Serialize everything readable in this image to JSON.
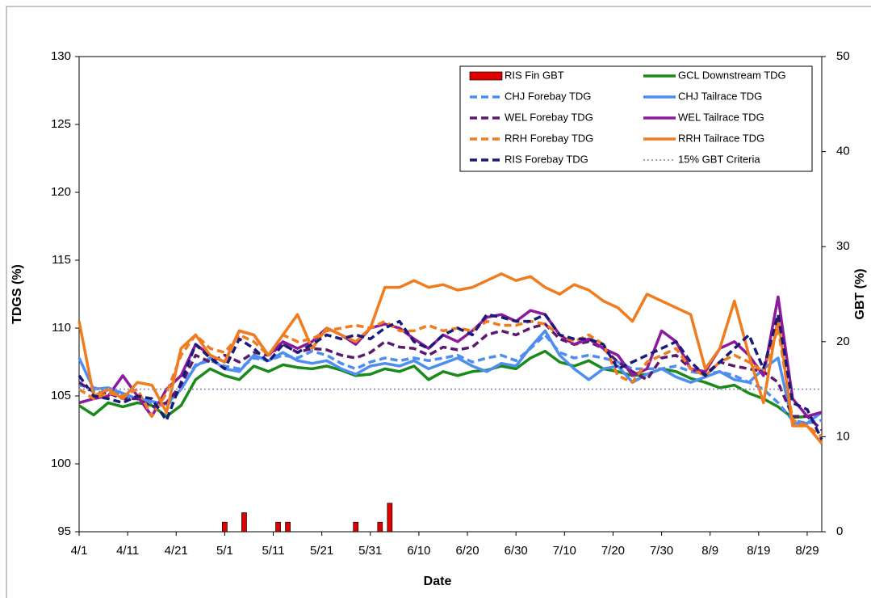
{
  "chart_data": {
    "type": "line",
    "x": [
      "4/1",
      "4/4",
      "4/7",
      "4/10",
      "4/13",
      "4/16",
      "4/19",
      "4/22",
      "4/25",
      "4/28",
      "5/1",
      "5/4",
      "5/7",
      "5/10",
      "5/13",
      "5/16",
      "5/19",
      "5/22",
      "5/25",
      "5/28",
      "5/31",
      "6/3",
      "6/6",
      "6/9",
      "6/12",
      "6/15",
      "6/18",
      "6/21",
      "6/24",
      "6/27",
      "6/30",
      "7/3",
      "7/6",
      "7/9",
      "7/12",
      "7/15",
      "7/18",
      "7/21",
      "7/24",
      "7/27",
      "7/30",
      "8/2",
      "8/5",
      "8/8",
      "8/11",
      "8/14",
      "8/17",
      "8/20",
      "8/23",
      "8/26",
      "8/29",
      "9/1"
    ],
    "xlim": [
      "4/1",
      "9/1"
    ],
    "xticks": [
      "4/1",
      "4/11",
      "4/21",
      "5/1",
      "5/11",
      "5/21",
      "5/31",
      "6/10",
      "6/20",
      "6/30",
      "7/10",
      "7/20",
      "7/30",
      "8/9",
      "8/19",
      "8/29"
    ],
    "xlabel": "Date",
    "ylabel": "TDGS (%)",
    "y2label": "GBT (%)",
    "ylim": [
      95,
      130
    ],
    "yticks": [
      95,
      100,
      105,
      110,
      115,
      120,
      125,
      130
    ],
    "y2lim": [
      0,
      50
    ],
    "y2ticks": [
      0,
      10,
      20,
      30,
      40,
      50
    ],
    "legend": "top-right",
    "series": [
      {
        "name": "RIS Fin GBT",
        "type": "bar",
        "axis": "y2",
        "color": "#e00000",
        "x": [
          "5/1",
          "5/5",
          "5/12",
          "5/14",
          "5/28",
          "6/2",
          "6/4"
        ],
        "values": [
          1,
          2,
          1,
          1,
          1,
          1,
          3
        ]
      },
      {
        "name": "GCL Downstream TDG",
        "color": "#1a8a1a",
        "style": "solid",
        "values": [
          104.3,
          103.6,
          104.5,
          104.2,
          104.5,
          104.3,
          103.5,
          104.3,
          106.2,
          107.0,
          106.5,
          106.2,
          107.2,
          106.8,
          107.3,
          107.1,
          107.0,
          107.2,
          106.9,
          106.5,
          106.6,
          107.0,
          106.8,
          107.2,
          106.2,
          106.8,
          106.5,
          106.8,
          106.9,
          107.2,
          107.0,
          107.8,
          108.3,
          107.5,
          107.2,
          107.6,
          107.0,
          106.8,
          106.5,
          106.6,
          107.0,
          106.8,
          106.3,
          106.0,
          105.6,
          105.8,
          105.2,
          104.8,
          104.2,
          103.4,
          103.5,
          103.8
        ]
      },
      {
        "name": "CHJ Forebay TDG",
        "color": "#4d8ef0",
        "style": "dashed",
        "values": [
          105.8,
          105.6,
          105.4,
          105.0,
          104.8,
          104.5,
          104.2,
          105.5,
          107.3,
          107.6,
          107.2,
          107.0,
          107.8,
          107.6,
          108.0,
          107.8,
          108.3,
          108.0,
          107.4,
          107.0,
          107.5,
          107.8,
          107.6,
          107.8,
          107.6,
          107.8,
          108.0,
          107.5,
          107.8,
          108.0,
          107.6,
          108.5,
          109.5,
          108.2,
          107.8,
          108.0,
          107.8,
          107.5,
          107.0,
          107.0,
          107.0,
          107.2,
          106.8,
          106.6,
          106.8,
          106.5,
          106.0,
          105.5,
          104.5,
          103.2,
          103.0,
          103.2
        ]
      },
      {
        "name": "CHJ Tailrace TDG",
        "color": "#4d8ef0",
        "style": "solid",
        "values": [
          107.8,
          105.5,
          105.6,
          105.2,
          104.8,
          104.6,
          104.4,
          105.5,
          107.2,
          107.8,
          107.0,
          106.8,
          108.0,
          107.6,
          108.2,
          107.6,
          107.4,
          107.6,
          107.0,
          106.6,
          107.2,
          107.4,
          107.2,
          107.6,
          107.0,
          107.4,
          107.8,
          107.2,
          106.8,
          107.4,
          107.2,
          108.6,
          109.8,
          108.0,
          107.0,
          106.2,
          107.0,
          107.2,
          106.0,
          106.6,
          107.0,
          106.4,
          106.0,
          106.4,
          106.8,
          106.2,
          106.0,
          107.0,
          107.8,
          103.0,
          103.0,
          103.8
        ]
      },
      {
        "name": "WEL Forebay TDG",
        "color": "#5c1a6e",
        "style": "dashed",
        "values": [
          106.0,
          105.3,
          105.2,
          104.8,
          104.8,
          104.2,
          104.5,
          105.8,
          108.0,
          107.5,
          108.0,
          107.5,
          108.2,
          108.0,
          108.8,
          108.2,
          108.5,
          108.4,
          108.0,
          107.8,
          108.2,
          109.0,
          108.6,
          108.5,
          108.0,
          108.6,
          108.4,
          108.6,
          109.5,
          109.8,
          109.5,
          110.0,
          110.3,
          109.2,
          108.8,
          109.0,
          108.5,
          107.5,
          106.8,
          106.2,
          107.8,
          108.0,
          107.0,
          106.6,
          107.5,
          107.2,
          107.0,
          106.8,
          106.0,
          103.5,
          103.5,
          102.5
        ]
      },
      {
        "name": "WEL Tailrace TDG",
        "color": "#8b1a9c",
        "style": "solid",
        "values": [
          104.5,
          104.8,
          105.0,
          106.5,
          105.0,
          103.5,
          105.5,
          106.5,
          108.8,
          108.0,
          107.5,
          109.8,
          109.5,
          108.0,
          109.0,
          108.5,
          109.0,
          110.0,
          109.5,
          108.8,
          110.0,
          110.3,
          110.0,
          109.2,
          108.5,
          109.5,
          109.0,
          109.8,
          110.8,
          111.0,
          110.5,
          111.3,
          111.0,
          109.5,
          108.8,
          109.2,
          108.5,
          108.0,
          106.5,
          107.0,
          109.8,
          109.0,
          107.0,
          106.8,
          108.5,
          109.0,
          108.0,
          106.5,
          112.3,
          104.8,
          103.5,
          103.8
        ]
      },
      {
        "name": "RRH Forebay TDG",
        "color": "#f07c1e",
        "style": "dashed",
        "values": [
          105.5,
          104.8,
          105.2,
          105.0,
          105.5,
          103.5,
          105.2,
          108.0,
          109.5,
          108.5,
          108.2,
          109.5,
          109.0,
          108.0,
          109.5,
          109.0,
          109.2,
          109.8,
          110.0,
          110.2,
          110.0,
          110.5,
          109.8,
          109.8,
          110.2,
          109.8,
          110.0,
          109.8,
          110.5,
          110.2,
          110.2,
          110.5,
          110.3,
          109.5,
          109.0,
          109.5,
          108.8,
          106.5,
          106.0,
          107.5,
          108.0,
          108.5,
          107.0,
          106.5,
          107.5,
          108.0,
          107.5,
          106.8,
          110.0,
          103.2,
          102.8,
          102.0
        ]
      },
      {
        "name": "RRH Tailrace TDG",
        "color": "#f07c1e",
        "style": "solid",
        "values": [
          110.5,
          105.0,
          105.5,
          104.8,
          106.0,
          105.8,
          103.8,
          108.5,
          109.5,
          108.0,
          107.5,
          109.8,
          109.5,
          108.0,
          109.5,
          111.0,
          108.5,
          110.0,
          109.5,
          109.0,
          110.0,
          113.0,
          113.0,
          113.5,
          113.0,
          113.2,
          112.8,
          113.0,
          113.5,
          114.0,
          113.5,
          113.8,
          113.0,
          112.5,
          113.2,
          112.8,
          112.0,
          111.5,
          110.5,
          112.5,
          112.0,
          111.5,
          111.0,
          107.0,
          108.5,
          112.0,
          108.0,
          104.5,
          110.8,
          102.8,
          102.8,
          101.5
        ]
      },
      {
        "name": "RIS Forebay TDG",
        "color": "#1a1a7a",
        "style": "dashed",
        "values": [
          106.5,
          105.0,
          104.8,
          104.5,
          105.0,
          104.8,
          103.2,
          106.0,
          108.8,
          107.8,
          107.0,
          109.2,
          108.5,
          107.5,
          108.8,
          108.2,
          108.8,
          109.5,
          109.2,
          109.5,
          109.2,
          110.0,
          110.5,
          109.0,
          108.5,
          109.5,
          110.0,
          109.5,
          111.0,
          110.8,
          110.5,
          110.5,
          111.0,
          109.5,
          109.2,
          109.2,
          108.8,
          107.0,
          107.5,
          108.0,
          108.5,
          109.0,
          107.5,
          106.5,
          107.5,
          108.5,
          109.5,
          107.0,
          111.0,
          104.5,
          104.0,
          101.8
        ]
      },
      {
        "name": "15% GBT Criteria",
        "axis": "y2",
        "color": "#9b9bc0",
        "style": "dotted",
        "x": [
          "4/1",
          "9/1"
        ],
        "values": [
          15,
          15
        ]
      }
    ]
  }
}
